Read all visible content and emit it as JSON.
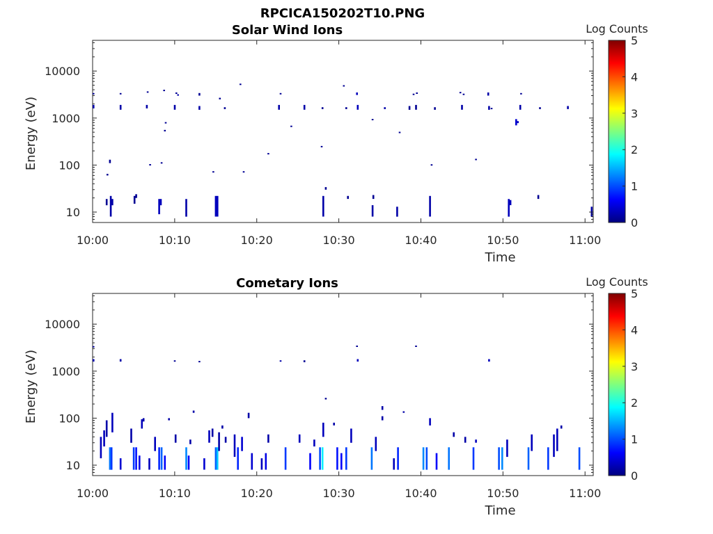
{
  "figure_title": "RPCICA150202T10.PNG",
  "colormap_stops": [
    "#00007f",
    "#0000ff",
    "#007fff",
    "#00ffff",
    "#7fff7f",
    "#ffff00",
    "#ff7f00",
    "#ff0000",
    "#7f0000"
  ],
  "chart_data": [
    {
      "type": "heatmap",
      "title": "Solar Wind Ions",
      "xlabel": "Time",
      "ylabel": "Energy (eV)",
      "y_scale": "log",
      "xlim": [
        "10:00",
        "11:00"
      ],
      "ylim": [
        6,
        45000
      ],
      "xticks": [
        "10:00",
        "10:10",
        "10:20",
        "10:30",
        "10:40",
        "10:50",
        "11:00"
      ],
      "yticks": [
        {
          "value": 10,
          "label": "10"
        },
        {
          "value": 100,
          "label": "100"
        },
        {
          "value": 1000,
          "label": "1000"
        },
        {
          "value": 10000,
          "label": "10000"
        }
      ],
      "colorbar": {
        "label": "Log Counts",
        "range": [
          0,
          5
        ],
        "ticks": [
          "0",
          "1",
          "2",
          "3",
          "4",
          "5"
        ]
      },
      "cells": [
        [
          "10:00",
          3200,
          3400,
          0.1
        ],
        [
          "10:00",
          1600,
          1900,
          0.2
        ],
        [
          "10:01.6",
          14,
          19,
          0.1
        ],
        [
          "10:01.7",
          60,
          65,
          0.1
        ],
        [
          "10:02",
          110,
          130,
          0.1
        ],
        [
          "10:02.1",
          8,
          22,
          0.2
        ],
        [
          "10:02.3",
          14,
          19,
          0.2
        ],
        [
          "10:03.3",
          3200,
          3400,
          0.1
        ],
        [
          "10:03.3",
          1500,
          1900,
          0.2
        ],
        [
          "10:05",
          15,
          22,
          0.1
        ],
        [
          "10:05.2",
          20,
          24,
          0.1
        ],
        [
          "10:06.5",
          1600,
          1900,
          0.2
        ],
        [
          "10:06.6",
          3500,
          3700,
          0.1
        ],
        [
          "10:06.9",
          100,
          105,
          0.1
        ],
        [
          "10:08",
          9,
          19,
          0.3
        ],
        [
          "10:08.2",
          14,
          19,
          0.3
        ],
        [
          "10:08.3",
          110,
          115,
          0.1
        ],
        [
          "10:08.6",
          3800,
          4000,
          0.1
        ],
        [
          "10:08.7",
          520,
          560,
          0.1
        ],
        [
          "10:08.8",
          780,
          820,
          0.1
        ],
        [
          "10:09.9",
          1500,
          1900,
          0.2
        ],
        [
          "10:10.1",
          3300,
          3500,
          0.1
        ],
        [
          "10:10.3",
          3000,
          3200,
          0.2
        ],
        [
          "10:11.3",
          8,
          19,
          0.2
        ],
        [
          "10:12.9",
          3000,
          3400,
          0.1
        ],
        [
          "10:12.9",
          1500,
          1800,
          0.2
        ],
        [
          "10:14.6",
          70,
          74,
          0.1
        ],
        [
          "10:14.9",
          8,
          22,
          0.3
        ],
        [
          "10:15.1",
          8,
          22,
          0.3
        ],
        [
          "10:15.4",
          2500,
          2700,
          0.1
        ],
        [
          "10:16",
          1550,
          1700,
          0.1
        ],
        [
          "10:17.9",
          5200,
          5400,
          0.1
        ],
        [
          "10:18.3",
          70,
          74,
          0.1
        ],
        [
          "10:21.3",
          170,
          180,
          0.1
        ],
        [
          "10:22.6",
          1500,
          1900,
          0.2
        ],
        [
          "10:22.8",
          3200,
          3400,
          0.1
        ],
        [
          "10:24.1",
          650,
          690,
          0.1
        ],
        [
          "10:25.7",
          1500,
          1900,
          0.2
        ],
        [
          "10:27.8",
          240,
          255,
          0.1
        ],
        [
          "10:27.9",
          1550,
          1700,
          0.1
        ],
        [
          "10:28",
          8,
          22,
          0.2
        ],
        [
          "10:28.3",
          30,
          34,
          0.1
        ],
        [
          "10:30.5",
          4800,
          5000,
          0.1
        ],
        [
          "10:30.8",
          1550,
          1700,
          0.1
        ],
        [
          "10:31",
          19,
          22,
          0.1
        ],
        [
          "10:32.1",
          3100,
          3500,
          0.3
        ],
        [
          "10:32.2",
          1500,
          1900,
          0.3
        ],
        [
          "10:34",
          8,
          14,
          0.2
        ],
        [
          "10:34.1",
          19,
          23,
          0.1
        ],
        [
          "10:34",
          900,
          960,
          0.1
        ],
        [
          "10:35.5",
          1550,
          1700,
          0.2
        ],
        [
          "10:37",
          8,
          13,
          0.2
        ],
        [
          "10:37.3",
          480,
          510,
          0.1
        ],
        [
          "10:38.5",
          1500,
          1800,
          0.1
        ],
        [
          "10:39",
          3100,
          3300,
          0.1
        ],
        [
          "10:39.3",
          1500,
          1900,
          0.1
        ],
        [
          "10:39.4",
          3300,
          3500,
          0.1
        ],
        [
          "10:41",
          8,
          22,
          0.2
        ],
        [
          "10:41.2",
          98,
          104,
          0.1
        ],
        [
          "10:41.6",
          1500,
          1700,
          0.1
        ],
        [
          "10:44.7",
          3400,
          3600,
          0.1
        ],
        [
          "10:44.9",
          1500,
          1900,
          0.2
        ],
        [
          "10:45.1",
          3100,
          3300,
          0.1
        ],
        [
          "10:46.6",
          130,
          136,
          0.1
        ],
        [
          "10:48.1",
          3000,
          3500,
          0.2
        ],
        [
          "10:48.2",
          1500,
          1800,
          0.2
        ],
        [
          "10:48.5",
          1550,
          1650,
          0.1
        ],
        [
          "10:50.6",
          8,
          19,
          0.3
        ],
        [
          "10:50.8",
          14,
          18,
          0.3
        ],
        [
          "10:51.5",
          700,
          950,
          0.4
        ],
        [
          "10:51.7",
          780,
          860,
          0.3
        ],
        [
          "10:52",
          1500,
          1900,
          0.2
        ],
        [
          "10:52.1",
          3200,
          3400,
          0.1
        ],
        [
          "10:54.4",
          1550,
          1700,
          0.1
        ],
        [
          "10:54.2",
          19,
          23,
          0.1
        ],
        [
          "10:57.8",
          1550,
          1800,
          0.2
        ],
        [
          "10:60.7",
          8,
          13,
          0.2
        ]
      ]
    },
    {
      "type": "heatmap",
      "title": "Cometary Ions",
      "xlabel": "Time",
      "ylabel": "Energy (eV)",
      "y_scale": "log",
      "xlim": [
        "10:00",
        "11:00"
      ],
      "ylim": [
        6,
        45000
      ],
      "xticks": [
        "10:00",
        "10:10",
        "10:20",
        "10:30",
        "10:40",
        "10:50",
        "11:00"
      ],
      "yticks": [
        {
          "value": 10,
          "label": "10"
        },
        {
          "value": 100,
          "label": "100"
        },
        {
          "value": 1000,
          "label": "1000"
        },
        {
          "value": 10000,
          "label": "10000"
        }
      ],
      "colorbar": {
        "label": "Log Counts",
        "range": [
          0,
          5
        ],
        "ticks": [
          "0",
          "1",
          "2",
          "3",
          "4",
          "5"
        ]
      },
      "cells": [
        [
          "10:00",
          3200,
          3400,
          0.1
        ],
        [
          "10:00",
          1600,
          1800,
          0.2
        ],
        [
          "10:00.9",
          14,
          40,
          0.3
        ],
        [
          "10:01.3",
          25,
          55,
          0.3
        ],
        [
          "10:01.6",
          40,
          90,
          0.2
        ],
        [
          "10:02",
          8,
          24,
          1.2
        ],
        [
          "10:02.2",
          8,
          24,
          0.9
        ],
        [
          "10:02.3",
          50,
          130,
          0.3
        ],
        [
          "10:03.3",
          1600,
          1800,
          0.2
        ],
        [
          "10:03.3",
          8,
          14,
          0.4
        ],
        [
          "10:04.6",
          30,
          60,
          0.2
        ],
        [
          "10:04.9",
          8,
          24,
          0.9
        ],
        [
          "10:05.2",
          8,
          24,
          0.7
        ],
        [
          "10:05.6",
          8,
          16,
          0.5
        ],
        [
          "10:05.9",
          60,
          95,
          0.3
        ],
        [
          "10:06.1",
          85,
          100,
          0.2
        ],
        [
          "10:06.8",
          8,
          14,
          0.3
        ],
        [
          "10:07.5",
          20,
          40,
          0.3
        ],
        [
          "10:08",
          8,
          24,
          0.8
        ],
        [
          "10:08.3",
          8,
          24,
          1.1
        ],
        [
          "10:08.7",
          8,
          16,
          0.6
        ],
        [
          "10:09.2",
          90,
          100,
          0.2
        ],
        [
          "10:09.9",
          1600,
          1700,
          0.1
        ],
        [
          "10:10",
          30,
          45,
          0.2
        ],
        [
          "10:11.3",
          8,
          24,
          1.3
        ],
        [
          "10:11.6",
          8,
          16,
          0.6
        ],
        [
          "10:11.8",
          28,
          35,
          0.2
        ],
        [
          "10:12.2",
          130,
          145,
          0.2
        ],
        [
          "10:12.9",
          1550,
          1650,
          0.1
        ],
        [
          "10:13.5",
          8,
          14,
          0.4
        ],
        [
          "10:14.1",
          30,
          55,
          0.3
        ],
        [
          "10:14.5",
          40,
          60,
          0.2
        ],
        [
          "10:14.9",
          8,
          24,
          1.1
        ],
        [
          "10:15.1",
          8,
          24,
          1.6
        ],
        [
          "10:15.3",
          20,
          50,
          0.2
        ],
        [
          "10:15.7",
          60,
          70,
          0.2
        ],
        [
          "10:16.1",
          30,
          40,
          0.2
        ],
        [
          "10:17.2",
          15,
          45,
          0.3
        ],
        [
          "10:17.6",
          8,
          24,
          0.8
        ],
        [
          "10:18.1",
          20,
          40,
          0.4
        ],
        [
          "10:18.9",
          100,
          130,
          0.2
        ],
        [
          "10:19.3",
          8,
          18,
          0.4
        ],
        [
          "10:20.5",
          8,
          14,
          0.3
        ],
        [
          "10:21",
          8,
          18,
          0.5
        ],
        [
          "10:21.3",
          30,
          45,
          0.2
        ],
        [
          "10:22.8",
          1600,
          1700,
          0.2
        ],
        [
          "10:23.4",
          8,
          24,
          0.9
        ],
        [
          "10:25.1",
          30,
          45,
          0.3
        ],
        [
          "10:25.7",
          1550,
          1700,
          0.1
        ],
        [
          "10:26.4",
          8,
          18,
          0.6
        ],
        [
          "10:26.9",
          25,
          35,
          0.3
        ],
        [
          "10:27.6",
          8,
          24,
          1.0
        ],
        [
          "10:27.9",
          8,
          24,
          1.8
        ],
        [
          "10:28",
          40,
          80,
          0.3
        ],
        [
          "10:28.3",
          250,
          270,
          0.1
        ],
        [
          "10:29.3",
          70,
          80,
          0.2
        ],
        [
          "10:29.7",
          8,
          24,
          0.7
        ],
        [
          "10:30.2",
          8,
          18,
          0.6
        ],
        [
          "10:30.8",
          8,
          24,
          0.9
        ],
        [
          "10:31.4",
          30,
          60,
          0.3
        ],
        [
          "10:32.1",
          3300,
          3500,
          0.1
        ],
        [
          "10:32.2",
          1600,
          1800,
          0.3
        ],
        [
          "10:33.9",
          8,
          24,
          1.2
        ],
        [
          "10:34.4",
          20,
          40,
          0.3
        ],
        [
          "10:35.2",
          150,
          180,
          0.2
        ],
        [
          "10:35.2",
          90,
          110,
          0.2
        ],
        [
          "10:36.6",
          8,
          14,
          0.3
        ],
        [
          "10:37.1",
          8,
          24,
          0.8
        ],
        [
          "10:37.8",
          130,
          140,
          0.2
        ],
        [
          "10:39.3",
          3300,
          3500,
          0.1
        ],
        [
          "10:40.2",
          8,
          24,
          1.3
        ],
        [
          "10:40.6",
          8,
          24,
          1.0
        ],
        [
          "10:41",
          70,
          100,
          0.3
        ],
        [
          "10:41.8",
          8,
          18,
          0.6
        ],
        [
          "10:43.3",
          8,
          24,
          1.2
        ],
        [
          "10:43.9",
          40,
          50,
          0.2
        ],
        [
          "10:45.3",
          30,
          40,
          0.2
        ],
        [
          "10:46.3",
          8,
          24,
          0.9
        ],
        [
          "10:46.6",
          30,
          35,
          0.3
        ],
        [
          "10:48.2",
          1600,
          1800,
          0.3
        ],
        [
          "10:49.4",
          8,
          24,
          1.0
        ],
        [
          "10:49.8",
          8,
          24,
          1.3
        ],
        [
          "10:50.4",
          15,
          35,
          0.3
        ],
        [
          "10:53",
          8,
          24,
          1.1
        ],
        [
          "10:53.4",
          20,
          45,
          0.3
        ],
        [
          "10:55.4",
          8,
          24,
          0.9
        ],
        [
          "10:56.1",
          15,
          45,
          0.3
        ],
        [
          "10:56.5",
          20,
          60,
          0.3
        ],
        [
          "10:57",
          60,
          70,
          0.2
        ],
        [
          "10:59.2",
          8,
          24,
          1.0
        ]
      ]
    }
  ]
}
